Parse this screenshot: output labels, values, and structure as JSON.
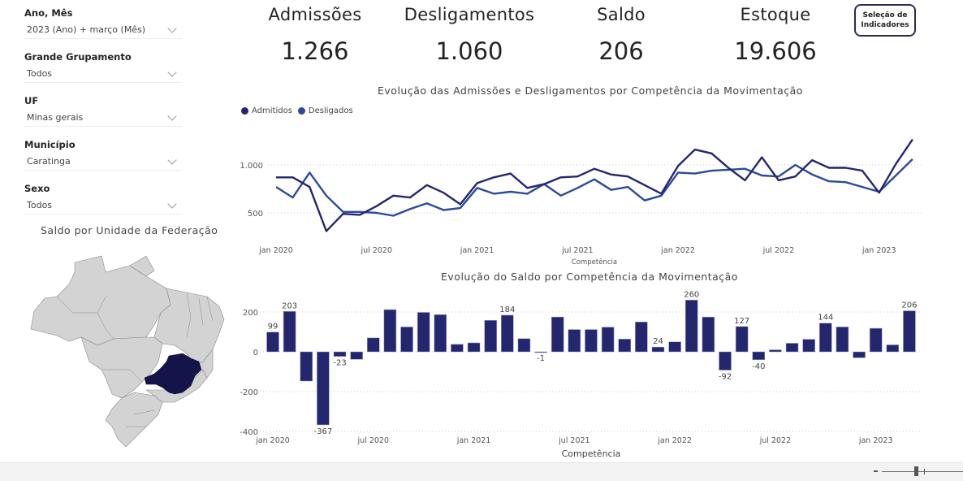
{
  "filters": [
    {
      "label": "Ano, Mês",
      "value": "2023 (Ano) + março (Mês)"
    },
    {
      "label": "Grande Grupamento",
      "value": "Todos"
    },
    {
      "label": "UF",
      "value": "Minas gerais"
    },
    {
      "label": "Município",
      "value": "Caratinga"
    },
    {
      "label": "Sexo",
      "value": "Todos"
    }
  ],
  "kpis": [
    {
      "label": "Admissões",
      "value": "1.266"
    },
    {
      "label": "Desligamentos",
      "value": "1.060"
    },
    {
      "label": "Saldo",
      "value": "206"
    },
    {
      "label": "Estoque",
      "value": "19.606"
    }
  ],
  "indicator_button": {
    "line1": "Seleção de",
    "line2": "Indicadores"
  },
  "map": {
    "title": "Saldo por Unidade da Federação",
    "highlighted_state": "Minas Gerais",
    "base_color": "#d3d3d3",
    "highlight_color": "#14144a"
  },
  "zoom_control": {
    "minus_label": "-",
    "plus_label": "+"
  },
  "chart_data": [
    {
      "type": "line",
      "title": "Evolução das Admissões e Desligamentos por Competência da Movimentação",
      "xlabel": "Competência",
      "ylabel": "",
      "ylim": [
        250,
        1300
      ],
      "yticks": [
        500,
        1000
      ],
      "ytick_labels": [
        "500",
        "1.000"
      ],
      "xtick_labels": [
        "jan 2020",
        "jul 2020",
        "jan 2021",
        "jul 2021",
        "jan 2022",
        "jul 2022",
        "jan 2023"
      ],
      "xtick_index": [
        0,
        6,
        12,
        18,
        24,
        30,
        36
      ],
      "legend_position": "top-left",
      "grid": true,
      "x": [
        "jan 2020",
        "fev 2020",
        "mar 2020",
        "abr 2020",
        "mai 2020",
        "jun 2020",
        "jul 2020",
        "ago 2020",
        "set 2020",
        "out 2020",
        "nov 2020",
        "dez 2020",
        "jan 2021",
        "fev 2021",
        "mar 2021",
        "abr 2021",
        "mai 2021",
        "jun 2021",
        "jul 2021",
        "ago 2021",
        "set 2021",
        "out 2021",
        "nov 2021",
        "dez 2021",
        "jan 2022",
        "fev 2022",
        "mar 2022",
        "abr 2022",
        "mai 2022",
        "jun 2022",
        "jul 2022",
        "ago 2022",
        "set 2022",
        "out 2022",
        "nov 2022",
        "dez 2022",
        "jan 2023",
        "fev 2023",
        "mar 2023"
      ],
      "series": [
        {
          "name": "Admitidos",
          "color": "#252572",
          "values": [
            870,
            870,
            770,
            310,
            490,
            480,
            570,
            680,
            660,
            790,
            710,
            590,
            810,
            870,
            910,
            760,
            800,
            870,
            880,
            960,
            900,
            880,
            790,
            700,
            990,
            1160,
            1120,
            970,
            840,
            1080,
            840,
            880,
            1050,
            970,
            970,
            940,
            710,
            1010,
            1266
          ]
        },
        {
          "name": "Desligados",
          "color": "#2b4a9b",
          "values": [
            770,
            660,
            920,
            680,
            510,
            510,
            500,
            470,
            540,
            600,
            530,
            550,
            760,
            700,
            720,
            700,
            800,
            680,
            760,
            850,
            740,
            770,
            630,
            680,
            920,
            910,
            940,
            950,
            960,
            890,
            880,
            1000,
            900,
            830,
            820,
            770,
            720,
            890,
            1060
          ]
        }
      ]
    },
    {
      "type": "bar",
      "title": "Evolução do Saldo por Competência da Movimentação",
      "xlabel": "Competência",
      "ylabel": "",
      "ylim": [
        -400,
        260
      ],
      "yticks": [
        -400,
        -200,
        0,
        200
      ],
      "ytick_labels": [
        "-400",
        "-200",
        "0",
        "200"
      ],
      "xtick_labels": [
        "jan 2020",
        "jul 2020",
        "jan 2021",
        "jul 2021",
        "jan 2022",
        "jul 2022",
        "jan 2023"
      ],
      "xtick_index": [
        0,
        6,
        12,
        18,
        24,
        30,
        36
      ],
      "grid": true,
      "color": "#25276e",
      "categories": [
        "jan 2020",
        "fev 2020",
        "mar 2020",
        "abr 2020",
        "mai 2020",
        "jun 2020",
        "jul 2020",
        "ago 2020",
        "set 2020",
        "out 2020",
        "nov 2020",
        "dez 2020",
        "jan 2021",
        "fev 2021",
        "mar 2021",
        "abr 2021",
        "mai 2021",
        "jun 2021",
        "jul 2021",
        "ago 2021",
        "set 2021",
        "out 2021",
        "nov 2021",
        "dez 2021",
        "jan 2022",
        "fev 2022",
        "mar 2022",
        "abr 2022",
        "mai 2022",
        "jun 2022",
        "jul 2022",
        "ago 2022",
        "set 2022",
        "out 2022",
        "nov 2022",
        "dez 2022",
        "jan 2023",
        "fev 2023",
        "mar 2023"
      ],
      "values": [
        99,
        203,
        -147,
        -367,
        -23,
        -38,
        70,
        212,
        125,
        198,
        187,
        38,
        45,
        158,
        184,
        66,
        -1,
        175,
        112,
        112,
        124,
        64,
        150,
        24,
        50,
        260,
        175,
        -92,
        127,
        -40,
        10,
        43,
        63,
        144,
        125,
        -30,
        118,
        35,
        206
      ],
      "labeled_indices": [
        0,
        1,
        3,
        4,
        14,
        16,
        23,
        25,
        27,
        28,
        29,
        33,
        38
      ]
    }
  ]
}
